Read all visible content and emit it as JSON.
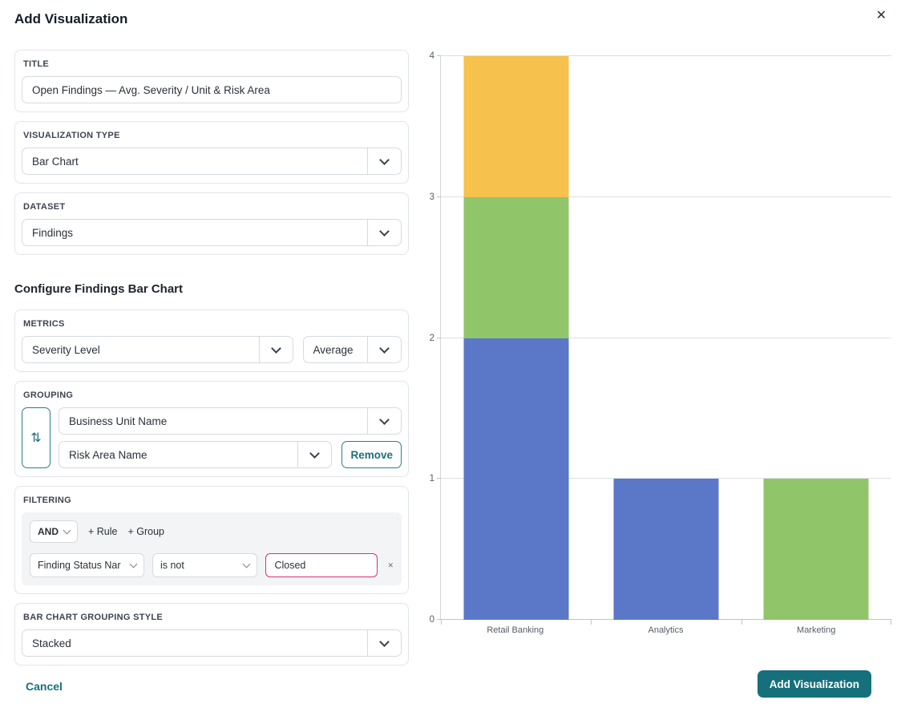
{
  "modal": {
    "title": "Add Visualization"
  },
  "icons": {
    "close": "✕",
    "swap_order": "⇅",
    "rule_remove": "✕"
  },
  "fields": {
    "title": {
      "label": "TITLE",
      "value": "Open Findings — Avg. Severity / Unit & Risk Area"
    },
    "viz_type": {
      "label": "VISUALIZATION TYPE",
      "value": "Bar Chart"
    },
    "dataset": {
      "label": "DATASET",
      "value": "Findings"
    },
    "configure_heading": "Configure Findings Bar Chart",
    "metrics": {
      "label": "METRICS",
      "metric": "Severity Level",
      "aggregation": "Average"
    },
    "grouping": {
      "label": "GROUPING",
      "first": "Business Unit Name",
      "second": "Risk Area Name",
      "remove_label": "Remove"
    },
    "filtering": {
      "label": "FILTERING",
      "operator": "AND",
      "add_rule_label": "+ Rule",
      "add_group_label": "+ Group",
      "rule_field": "Finding Status Nar",
      "rule_operator": "is not",
      "rule_value": "Closed"
    },
    "grouping_style": {
      "label": "BAR CHART GROUPING STYLE",
      "value": "Stacked"
    }
  },
  "footer": {
    "cancel_label": "Cancel",
    "submit_label": "Add Visualization"
  },
  "chart_data": {
    "type": "bar",
    "stacked": true,
    "title": "",
    "xlabel": "",
    "ylabel": "",
    "categories": [
      "Retail Banking",
      "Analytics",
      "Marketing"
    ],
    "series": [
      {
        "name": "blue",
        "color": "#5b77c7",
        "values": [
          2,
          1,
          0
        ]
      },
      {
        "name": "green",
        "color": "#90c669",
        "values": [
          1,
          0,
          1
        ]
      },
      {
        "name": "orange",
        "color": "#f6c14c",
        "values": [
          1,
          0,
          0
        ]
      }
    ],
    "ylim": [
      0,
      4
    ],
    "yticks": [
      0,
      1,
      2,
      3,
      4
    ],
    "grid": true,
    "legend": "none"
  }
}
